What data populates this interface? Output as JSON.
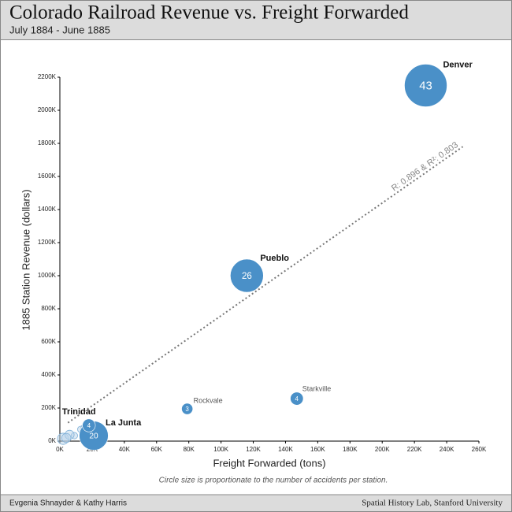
{
  "chart_data": {
    "type": "bubble",
    "title": "Colorado Railroad Revenue vs. Freight Forwarded",
    "subtitle": "July 1884 - June 1885",
    "x_label": "Freight Forwarded (tons)",
    "y_label": "1885 Station Revenue (dollars)",
    "note": "Circle size is proportionate to the number of accidents per station.",
    "credit_left": "Evgenia Shnayder & Kathy Harris",
    "credit_right": "Spatial History Lab, Stanford University",
    "xlim": [
      0,
      260000
    ],
    "ylim": [
      0,
      2200000
    ],
    "xticks": [
      {
        "value": 0,
        "label": "0K"
      },
      {
        "value": 20000,
        "label": "20K"
      },
      {
        "value": 40000,
        "label": "40K"
      },
      {
        "value": 60000,
        "label": "60K"
      },
      {
        "value": 80000,
        "label": "80K"
      },
      {
        "value": 100000,
        "label": "100K"
      },
      {
        "value": 120000,
        "label": "120K"
      },
      {
        "value": 140000,
        "label": "140K"
      },
      {
        "value": 160000,
        "label": "160K"
      },
      {
        "value": 180000,
        "label": "180K"
      },
      {
        "value": 200000,
        "label": "200K"
      },
      {
        "value": 220000,
        "label": "220K"
      },
      {
        "value": 240000,
        "label": "240K"
      },
      {
        "value": 260000,
        "label": "260K"
      }
    ],
    "yticks": [
      {
        "value": 0,
        "label": "0K"
      },
      {
        "value": 200000,
        "label": "200K"
      },
      {
        "value": 400000,
        "label": "400K"
      },
      {
        "value": 600000,
        "label": "600K"
      },
      {
        "value": 800000,
        "label": "800K"
      },
      {
        "value": 1000000,
        "label": "1000K"
      },
      {
        "value": 1200000,
        "label": "1200K"
      },
      {
        "value": 1400000,
        "label": "1400K"
      },
      {
        "value": 1600000,
        "label": "1600K"
      },
      {
        "value": 1800000,
        "label": "1800K"
      },
      {
        "value": 2000000,
        "label": "2000K"
      },
      {
        "value": 2200000,
        "label": "2200K"
      }
    ],
    "series": [
      {
        "color": "#4a90c8",
        "names": [
          "Denver",
          "Pueblo",
          "Rockvale",
          "Starkville",
          "Trinidad",
          "La Junta",
          null,
          null,
          null,
          null,
          null,
          null
        ],
        "x": [
          227000,
          116000,
          79000,
          147000,
          18000,
          21000,
          4000,
          6000,
          9000,
          13000,
          2000,
          15000
        ],
        "values": [
          2150000,
          1000000,
          195000,
          257000,
          95000,
          33000,
          19000,
          38000,
          33000,
          71000,
          14000,
          80000
        ],
        "sizes": [
          43,
          26,
          3,
          4,
          4,
          20,
          2,
          2,
          1,
          1,
          3,
          1
        ]
      }
    ],
    "trendline": {
      "label": "R: 0.896 & R²: 0.803",
      "color": "#777777",
      "x": [
        5000,
        250000
      ],
      "values": [
        111000,
        1780000
      ]
    }
  }
}
